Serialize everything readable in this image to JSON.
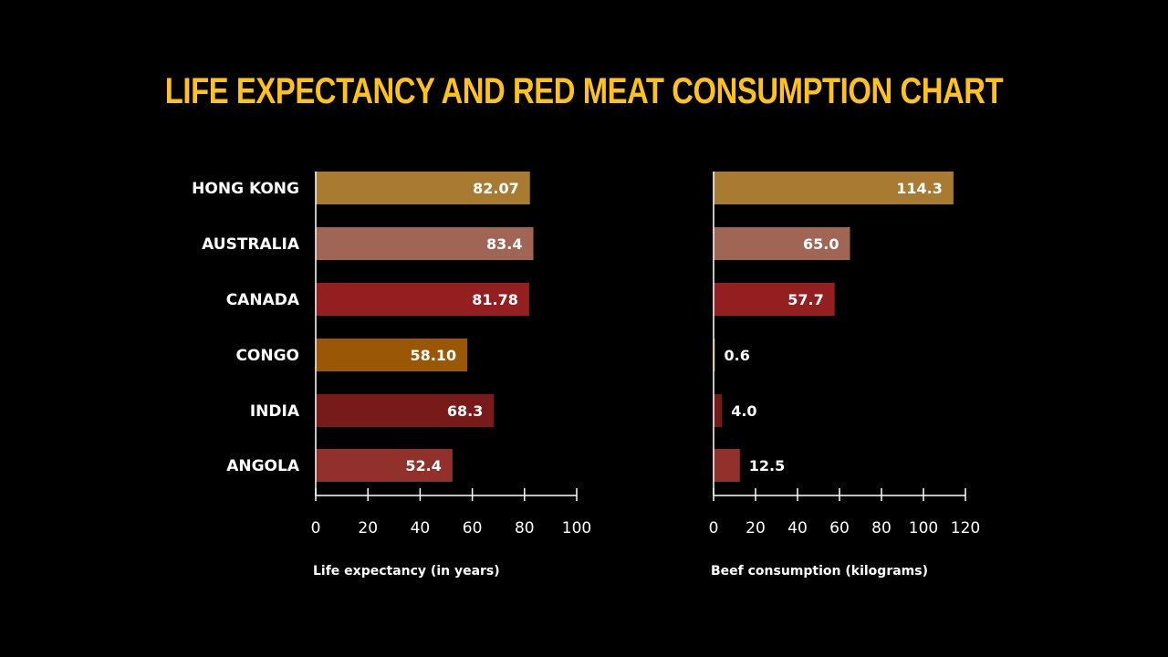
{
  "title": "LIFE EXPECTANCY AND RED MEAT CONSUMPTION CHART",
  "colors": {
    "background": "#000000",
    "title": "#FFC21A",
    "text": "#FFFFFF",
    "axis": "#FFFFFF"
  },
  "chart_data": [
    {
      "type": "bar",
      "orientation": "horizontal",
      "categories": [
        "HONG KONG",
        "AUSTRALIA",
        "CANADA",
        "CONGO",
        "INDIA",
        "ANGOLA"
      ],
      "values": [
        82.07,
        83.4,
        81.78,
        58.1,
        68.3,
        52.4
      ],
      "value_labels": [
        "82.07",
        "83.4",
        "81.78",
        "58.10",
        "68.3",
        "52.4"
      ],
      "bar_colors": [
        "#A97A31",
        "#A06554",
        "#931F21",
        "#9A5705",
        "#781A1A",
        "#92302B"
      ],
      "xlabel": "Life expectancy (in years)",
      "xlim": [
        0,
        100
      ],
      "xticks": [
        0,
        20,
        40,
        60,
        80,
        100
      ],
      "grid": false
    },
    {
      "type": "bar",
      "orientation": "horizontal",
      "categories": [
        "HONG KONG",
        "AUSTRALIA",
        "CANADA",
        "CONGO",
        "INDIA",
        "ANGOLA"
      ],
      "values": [
        114.3,
        65.0,
        57.7,
        0.6,
        4.0,
        12.5
      ],
      "value_labels": [
        "114.3",
        "65.0",
        "57.7",
        "0.6",
        "4.0",
        "12.5"
      ],
      "bar_colors": [
        "#A97A31",
        "#A06554",
        "#931F21",
        "#9A5705",
        "#781A1A",
        "#92302B"
      ],
      "xlabel": "Beef consumption (kilograms)",
      "xlim": [
        0,
        120
      ],
      "xticks": [
        0,
        20,
        40,
        60,
        80,
        100,
        120
      ],
      "grid": false
    }
  ]
}
